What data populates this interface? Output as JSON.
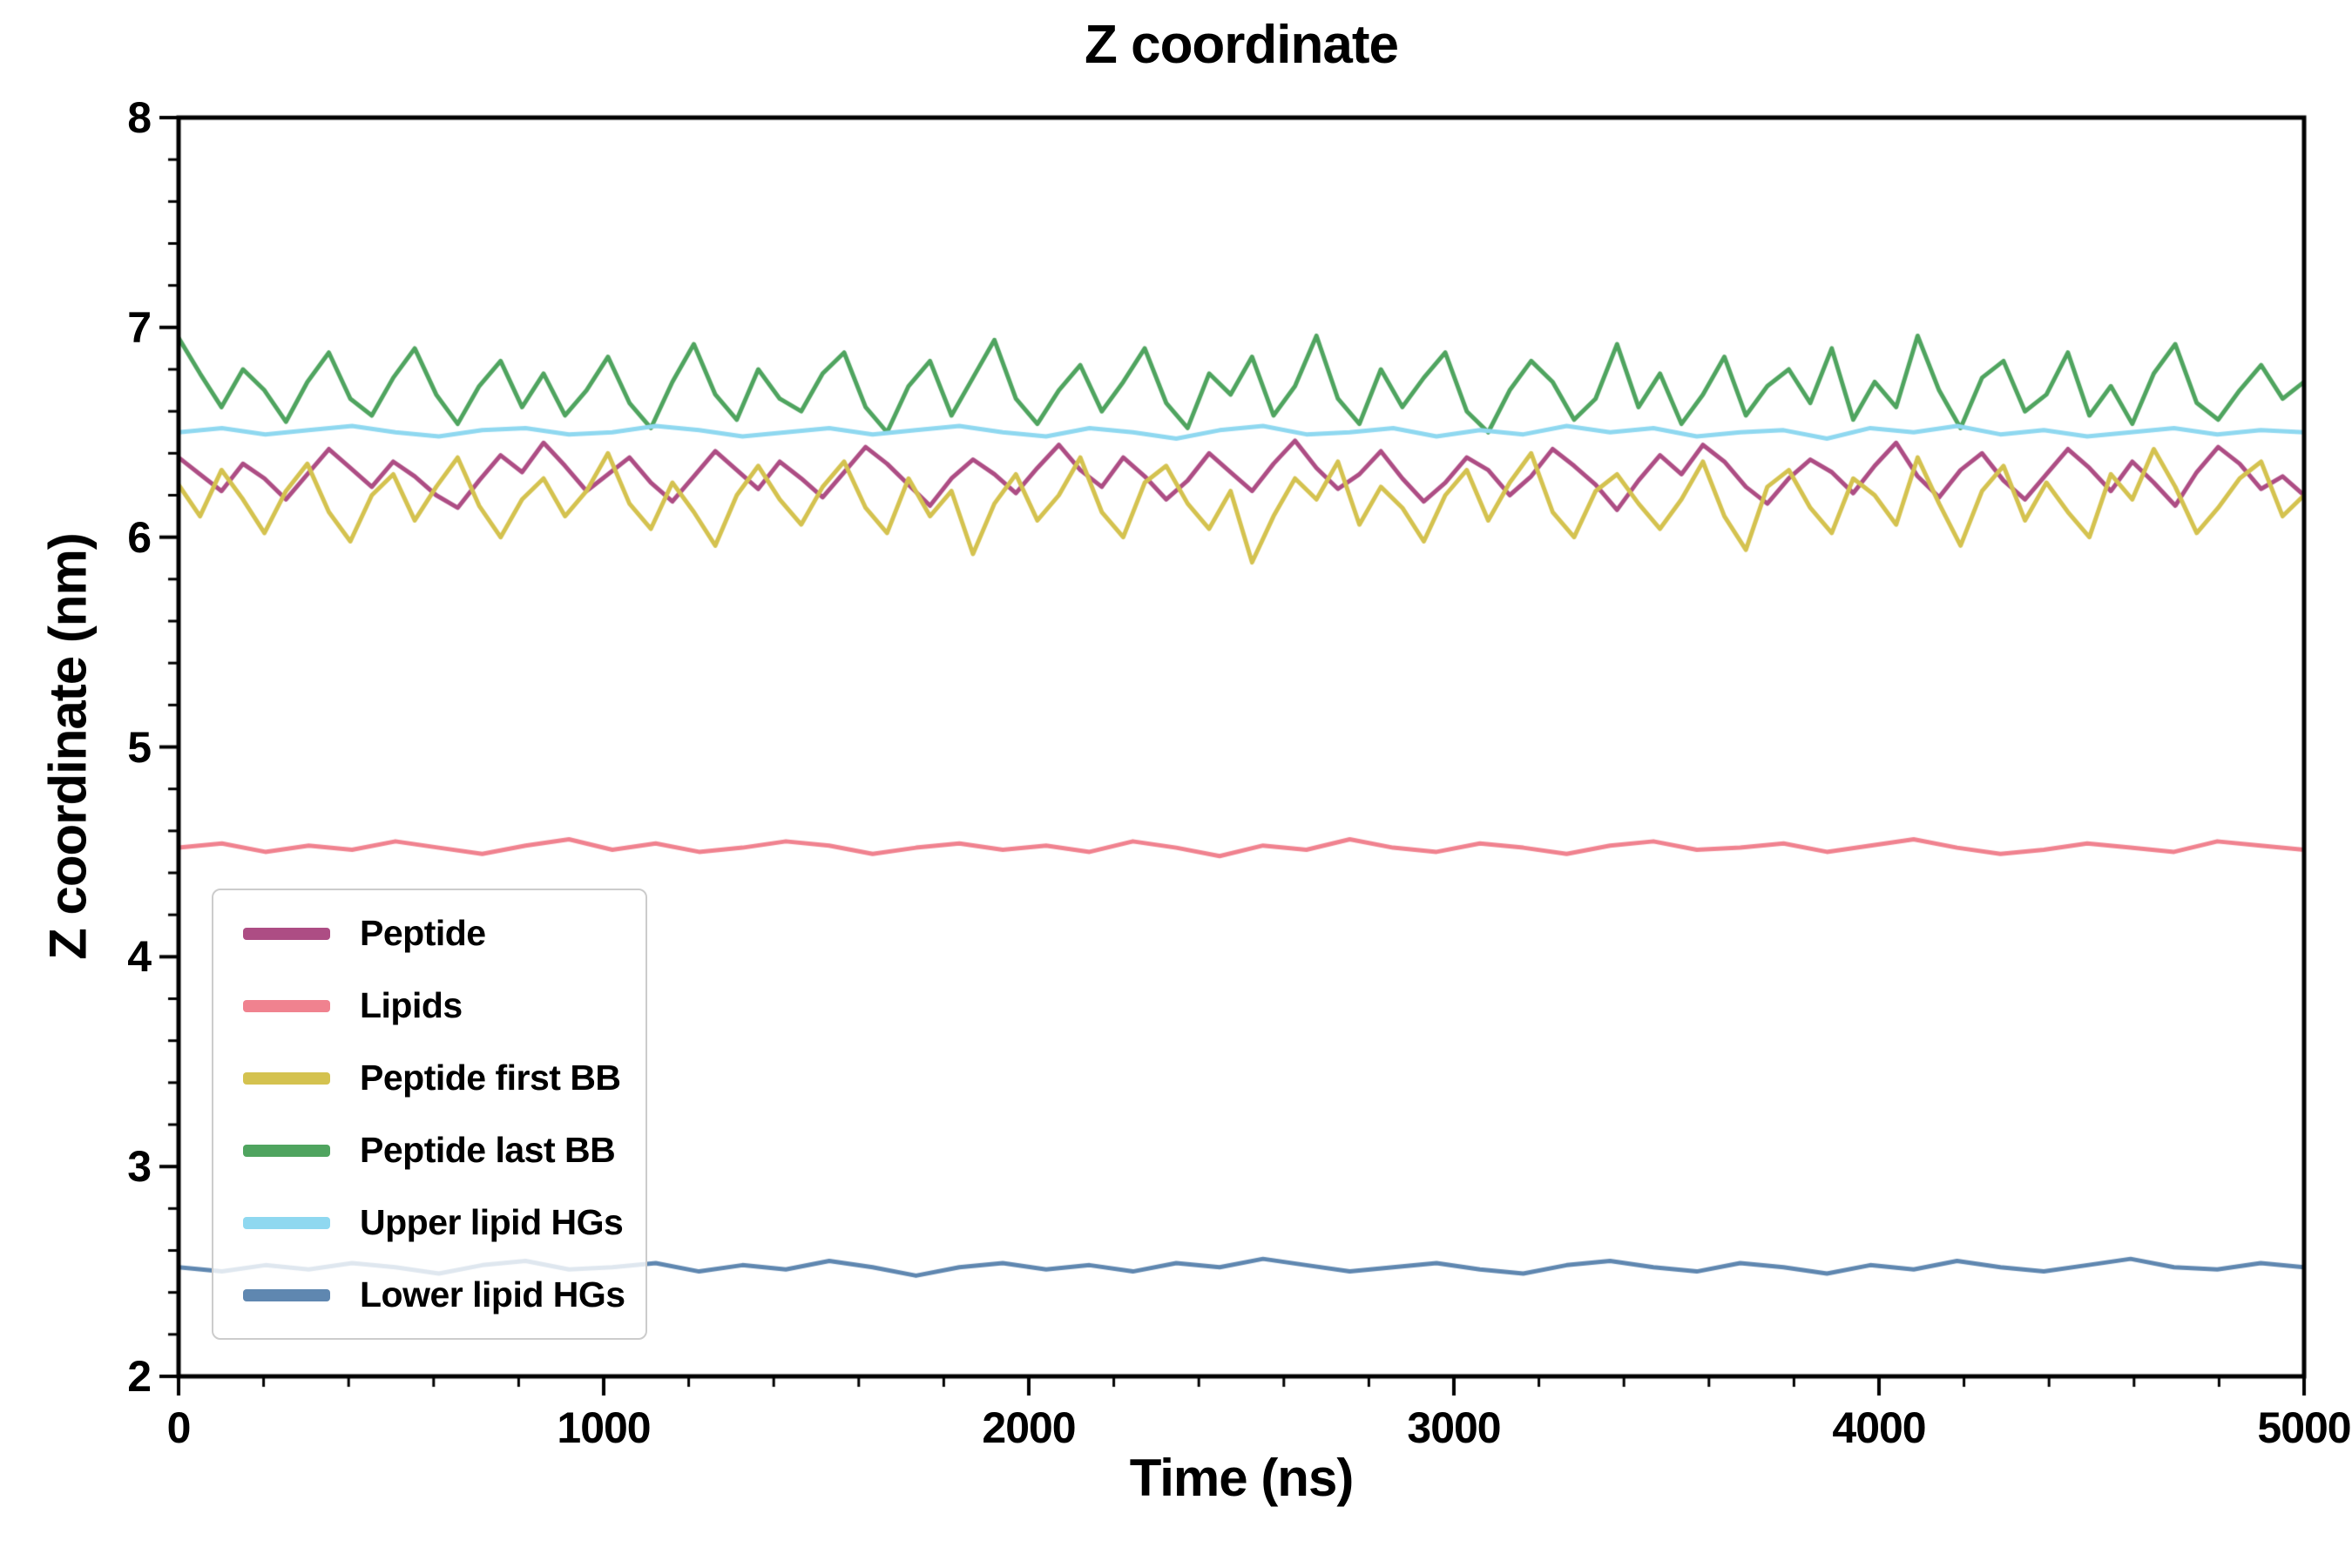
{
  "chart_data": {
    "type": "line",
    "title": "Z coordinate",
    "xlabel": "Time (ns)",
    "ylabel": "Z coordinate (nm)",
    "xlim": [
      0,
      5000
    ],
    "ylim": [
      2,
      8
    ],
    "x_major_ticks": [
      0,
      1000,
      2000,
      3000,
      4000,
      5000
    ],
    "x_minor_step": 200,
    "y_major_ticks": [
      2,
      3,
      4,
      5,
      6,
      7,
      8
    ],
    "y_minor_step": 0.2,
    "grid": false,
    "legend_position": "lower left",
    "axes_color": "#000000",
    "line_width": 5,
    "series": [
      {
        "name": "Peptide",
        "color": "#ad4d84",
        "mean": 6.3,
        "values": [
          6.38,
          6.3,
          6.22,
          6.35,
          6.28,
          6.18,
          6.3,
          6.42,
          6.33,
          6.24,
          6.36,
          6.29,
          6.2,
          6.14,
          6.27,
          6.39,
          6.31,
          6.45,
          6.34,
          6.22,
          6.3,
          6.38,
          6.26,
          6.17,
          6.29,
          6.41,
          6.32,
          6.23,
          6.36,
          6.28,
          6.19,
          6.31,
          6.43,
          6.35,
          6.25,
          6.15,
          6.28,
          6.37,
          6.3,
          6.21,
          6.33,
          6.44,
          6.32,
          6.24,
          6.38,
          6.29,
          6.18,
          6.27,
          6.4,
          6.31,
          6.22,
          6.35,
          6.46,
          6.33,
          6.23,
          6.3,
          6.41,
          6.28,
          6.17,
          6.26,
          6.38,
          6.32,
          6.2,
          6.29,
          6.42,
          6.34,
          6.25,
          6.13,
          6.27,
          6.39,
          6.3,
          6.44,
          6.36,
          6.24,
          6.16,
          6.28,
          6.37,
          6.31,
          6.21,
          6.34,
          6.45,
          6.29,
          6.19,
          6.32,
          6.4,
          6.27,
          6.18,
          6.3,
          6.42,
          6.33,
          6.22,
          6.36,
          6.26,
          6.15,
          6.31,
          6.43,
          6.35,
          6.23,
          6.29,
          6.2
        ]
      },
      {
        "name": "Lipids",
        "color": "#f0828f",
        "mean": 4.52,
        "values": [
          4.52,
          4.54,
          4.5,
          4.53,
          4.51,
          4.55,
          4.52,
          4.49,
          4.53,
          4.56,
          4.51,
          4.54,
          4.5,
          4.52,
          4.55,
          4.53,
          4.49,
          4.52,
          4.54,
          4.51,
          4.53,
          4.5,
          4.55,
          4.52,
          4.48,
          4.53,
          4.51,
          4.56,
          4.52,
          4.5,
          4.54,
          4.52,
          4.49,
          4.53,
          4.55,
          4.51,
          4.52,
          4.54,
          4.5,
          4.53,
          4.56,
          4.52,
          4.49,
          4.51,
          4.54,
          4.52,
          4.5,
          4.55,
          4.53,
          4.51
        ]
      },
      {
        "name": "Peptide first BB",
        "color": "#d4c24f",
        "mean": 6.18,
        "values": [
          6.25,
          6.1,
          6.32,
          6.18,
          6.02,
          6.22,
          6.35,
          6.12,
          5.98,
          6.2,
          6.3,
          6.08,
          6.24,
          6.38,
          6.15,
          6.0,
          6.18,
          6.28,
          6.1,
          6.22,
          6.4,
          6.16,
          6.04,
          6.26,
          6.12,
          5.96,
          6.2,
          6.34,
          6.18,
          6.06,
          6.24,
          6.36,
          6.14,
          6.02,
          6.28,
          6.1,
          6.22,
          5.92,
          6.16,
          6.3,
          6.08,
          6.2,
          6.38,
          6.12,
          6.0,
          6.26,
          6.34,
          6.16,
          6.04,
          6.22,
          5.88,
          6.1,
          6.28,
          6.18,
          6.36,
          6.06,
          6.24,
          6.14,
          5.98,
          6.2,
          6.32,
          6.08,
          6.26,
          6.4,
          6.12,
          6.0,
          6.22,
          6.3,
          6.16,
          6.04,
          6.18,
          6.36,
          6.1,
          5.94,
          6.24,
          6.32,
          6.14,
          6.02,
          6.28,
          6.2,
          6.06,
          6.38,
          6.16,
          5.96,
          6.22,
          6.34,
          6.08,
          6.26,
          6.12,
          6.0,
          6.3,
          6.18,
          6.42,
          6.24,
          6.02,
          6.14,
          6.28,
          6.36,
          6.1,
          6.2
        ]
      },
      {
        "name": "Peptide last BB",
        "color": "#4fa45f",
        "mean": 6.7,
        "values": [
          6.95,
          6.78,
          6.62,
          6.8,
          6.7,
          6.55,
          6.74,
          6.88,
          6.66,
          6.58,
          6.76,
          6.9,
          6.68,
          6.54,
          6.72,
          6.84,
          6.62,
          6.78,
          6.58,
          6.7,
          6.86,
          6.64,
          6.52,
          6.74,
          6.92,
          6.68,
          6.56,
          6.8,
          6.66,
          6.6,
          6.78,
          6.88,
          6.62,
          6.5,
          6.72,
          6.84,
          6.58,
          6.76,
          6.94,
          6.66,
          6.54,
          6.7,
          6.82,
          6.6,
          6.74,
          6.9,
          6.64,
          6.52,
          6.78,
          6.68,
          6.86,
          6.58,
          6.72,
          6.96,
          6.66,
          6.54,
          6.8,
          6.62,
          6.76,
          6.88,
          6.6,
          6.5,
          6.7,
          6.84,
          6.74,
          6.56,
          6.66,
          6.92,
          6.62,
          6.78,
          6.54,
          6.68,
          6.86,
          6.58,
          6.72,
          6.8,
          6.64,
          6.9,
          6.56,
          6.74,
          6.62,
          6.96,
          6.7,
          6.52,
          6.76,
          6.84,
          6.6,
          6.68,
          6.88,
          6.58,
          6.72,
          6.54,
          6.78,
          6.92,
          6.64,
          6.56,
          6.7,
          6.82,
          6.66,
          6.74
        ]
      },
      {
        "name": "Upper lipid HGs",
        "color": "#8fd8f0",
        "mean": 6.5,
        "values": [
          6.5,
          6.52,
          6.49,
          6.51,
          6.53,
          6.5,
          6.48,
          6.51,
          6.52,
          6.49,
          6.5,
          6.53,
          6.51,
          6.48,
          6.5,
          6.52,
          6.49,
          6.51,
          6.53,
          6.5,
          6.48,
          6.52,
          6.5,
          6.47,
          6.51,
          6.53,
          6.49,
          6.5,
          6.52,
          6.48,
          6.51,
          6.49,
          6.53,
          6.5,
          6.52,
          6.48,
          6.5,
          6.51,
          6.47,
          6.52,
          6.5,
          6.53,
          6.49,
          6.51,
          6.48,
          6.5,
          6.52,
          6.49,
          6.51,
          6.5
        ]
      },
      {
        "name": "Lower lipid HGs",
        "color": "#5f87b0",
        "mean": 2.52,
        "values": [
          2.52,
          2.5,
          2.53,
          2.51,
          2.54,
          2.52,
          2.49,
          2.53,
          2.55,
          2.51,
          2.52,
          2.54,
          2.5,
          2.53,
          2.51,
          2.55,
          2.52,
          2.48,
          2.52,
          2.54,
          2.51,
          2.53,
          2.5,
          2.54,
          2.52,
          2.56,
          2.53,
          2.5,
          2.52,
          2.54,
          2.51,
          2.49,
          2.53,
          2.55,
          2.52,
          2.5,
          2.54,
          2.52,
          2.49,
          2.53,
          2.51,
          2.55,
          2.52,
          2.5,
          2.53,
          2.56,
          2.52,
          2.51,
          2.54,
          2.52
        ]
      }
    ]
  }
}
